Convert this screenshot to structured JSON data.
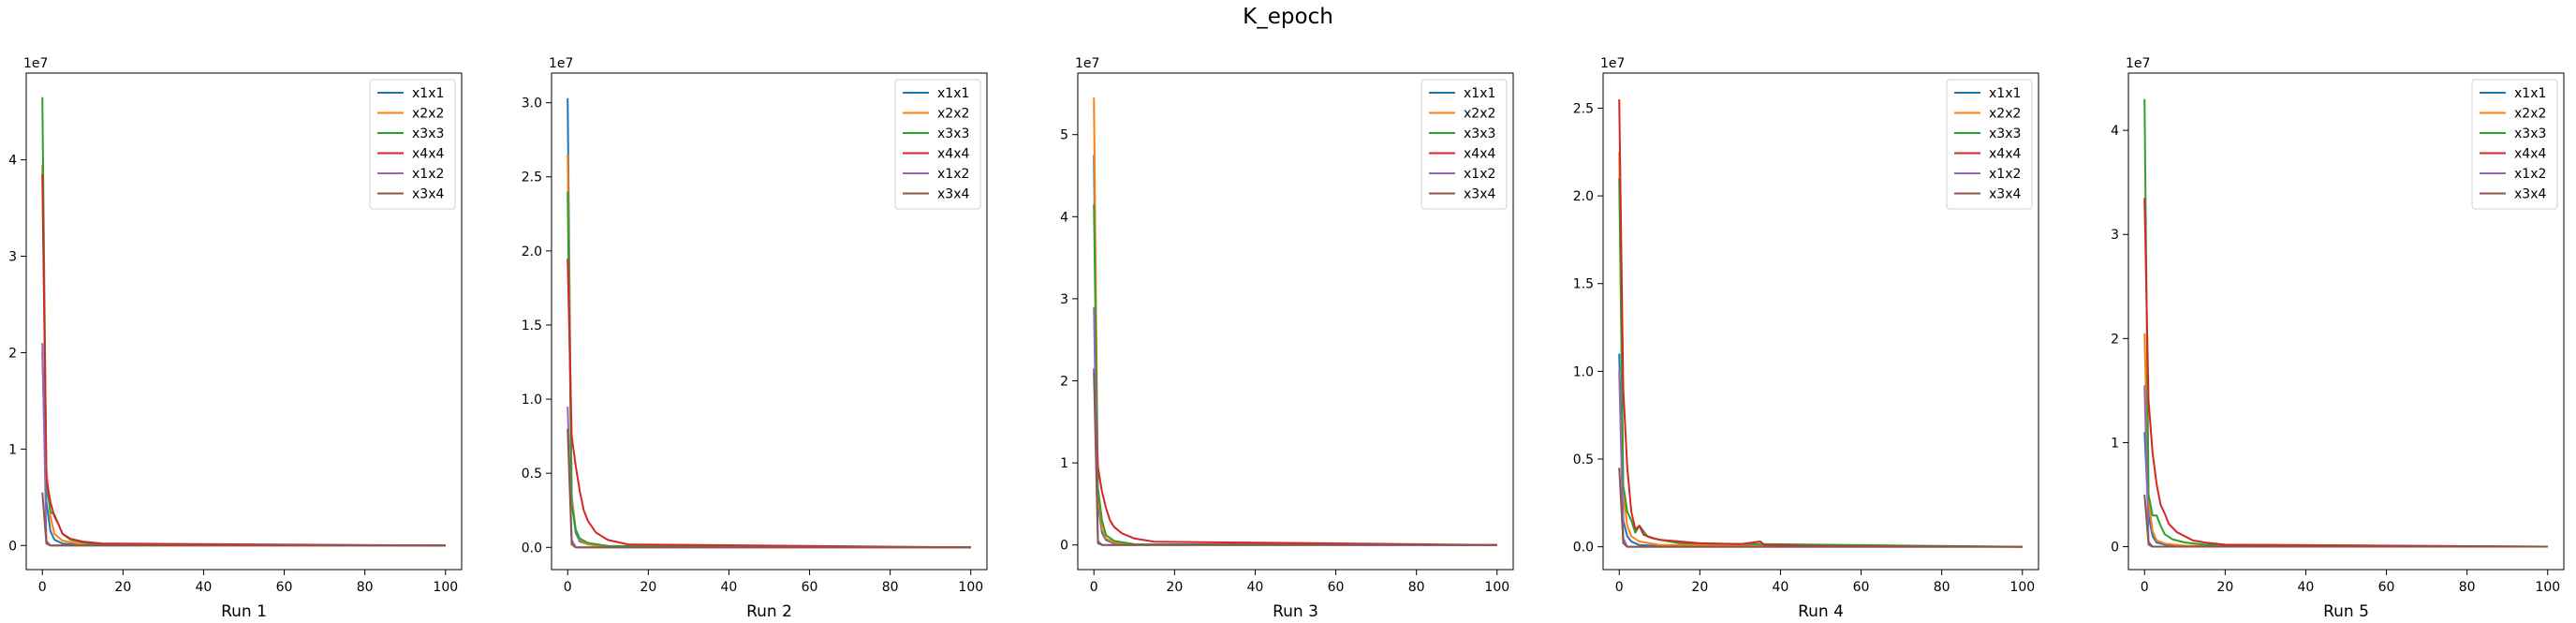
{
  "figure": {
    "title": "K_epoch"
  },
  "colors": {
    "x1x1": "#1f77b4",
    "x2x2": "#ff7f0e",
    "x3x3": "#2ca02c",
    "x4x4": "#d62728",
    "x1x2": "#9467bd",
    "x3x4": "#8c564b"
  },
  "chart_data": [
    {
      "type": "line",
      "title": "",
      "xlabel": "Run 1",
      "ylabel": "",
      "y_scale_label": "1e7",
      "xlim": [
        -4,
        104
      ],
      "ylim": [
        -0.25,
        4.9
      ],
      "xticks": [
        0,
        20,
        40,
        60,
        80,
        100
      ],
      "xtick_labels": [
        "0",
        "20",
        "40",
        "60",
        "80",
        "100"
      ],
      "yticks": [
        0,
        1,
        2,
        3,
        4
      ],
      "ytick_labels": [
        "0",
        "1",
        "2",
        "3",
        "4"
      ],
      "grid": false,
      "legend": "top-right",
      "series": [
        {
          "name": "x1x1",
          "x": [
            0,
            1,
            2,
            3,
            5,
            10,
            100
          ],
          "y": [
            2.0,
            0.45,
            0.15,
            0.06,
            0.02,
            0.005,
            0.0
          ]
        },
        {
          "name": "x2x2",
          "x": [
            0,
            1,
            2,
            3,
            5,
            10,
            100
          ],
          "y": [
            3.95,
            0.8,
            0.3,
            0.12,
            0.05,
            0.01,
            0.0
          ]
        },
        {
          "name": "x3x3",
          "x": [
            0,
            1,
            2,
            3,
            4,
            5,
            7,
            10,
            15,
            100
          ],
          "y": [
            4.65,
            0.65,
            0.35,
            0.32,
            0.22,
            0.12,
            0.06,
            0.03,
            0.01,
            0.0
          ]
        },
        {
          "name": "x4x4",
          "x": [
            0,
            1,
            2,
            3,
            4,
            5,
            7,
            10,
            15,
            100
          ],
          "y": [
            3.85,
            0.7,
            0.45,
            0.3,
            0.22,
            0.12,
            0.07,
            0.04,
            0.02,
            0.0
          ]
        },
        {
          "name": "x1x2",
          "x": [
            0,
            1,
            2,
            100
          ],
          "y": [
            2.1,
            0.05,
            0.0,
            0.0
          ]
        },
        {
          "name": "x3x4",
          "x": [
            0,
            1,
            2,
            100
          ],
          "y": [
            0.55,
            0.02,
            0.0,
            0.0
          ]
        }
      ]
    },
    {
      "type": "line",
      "title": "",
      "xlabel": "Run 2",
      "ylabel": "",
      "y_scale_label": "1e7",
      "xlim": [
        -4,
        104
      ],
      "ylim": [
        -0.15,
        3.2
      ],
      "xticks": [
        0,
        20,
        40,
        60,
        80,
        100
      ],
      "xtick_labels": [
        "0",
        "20",
        "40",
        "60",
        "80",
        "100"
      ],
      "yticks": [
        0.0,
        0.5,
        1.0,
        1.5,
        2.0,
        2.5,
        3.0
      ],
      "ytick_labels": [
        "0.0",
        "0.5",
        "1.0",
        "1.5",
        "2.0",
        "2.5",
        "3.0"
      ],
      "grid": false,
      "legend": "top-right",
      "series": [
        {
          "name": "x1x1",
          "x": [
            0,
            1,
            2,
            3,
            5,
            10,
            100
          ],
          "y": [
            3.03,
            0.3,
            0.1,
            0.04,
            0.02,
            0.005,
            0.0
          ]
        },
        {
          "name": "x2x2",
          "x": [
            0,
            1,
            2,
            3,
            5,
            10,
            100
          ],
          "y": [
            2.65,
            0.35,
            0.12,
            0.05,
            0.02,
            0.005,
            0.0
          ]
        },
        {
          "name": "x3x3",
          "x": [
            0,
            1,
            2,
            3,
            5,
            10,
            100
          ],
          "y": [
            2.4,
            0.3,
            0.12,
            0.06,
            0.03,
            0.01,
            0.0
          ]
        },
        {
          "name": "x4x4",
          "x": [
            0,
            1,
            2,
            3,
            4,
            5,
            7,
            10,
            15,
            100
          ],
          "y": [
            1.95,
            0.75,
            0.55,
            0.38,
            0.25,
            0.18,
            0.1,
            0.05,
            0.02,
            0.0
          ]
        },
        {
          "name": "x1x2",
          "x": [
            0,
            1,
            2,
            100
          ],
          "y": [
            0.95,
            0.05,
            0.0,
            0.0
          ]
        },
        {
          "name": "x3x4",
          "x": [
            0,
            1,
            2,
            100
          ],
          "y": [
            0.8,
            0.02,
            0.0,
            0.0
          ]
        }
      ]
    },
    {
      "type": "line",
      "title": "",
      "xlabel": "Run 3",
      "ylabel": "",
      "y_scale_label": "1e7",
      "xlim": [
        -4,
        104
      ],
      "ylim": [
        -0.3,
        5.75
      ],
      "xticks": [
        0,
        20,
        40,
        60,
        80,
        100
      ],
      "xtick_labels": [
        "0",
        "20",
        "40",
        "60",
        "80",
        "100"
      ],
      "yticks": [
        0,
        1,
        2,
        3,
        4,
        5
      ],
      "ytick_labels": [
        "0",
        "1",
        "2",
        "3",
        "4",
        "5"
      ],
      "grid": false,
      "legend": "top-right",
      "series": [
        {
          "name": "x1x1",
          "x": [
            0,
            1,
            2,
            3,
            5,
            10,
            100
          ],
          "y": [
            4.75,
            0.5,
            0.15,
            0.06,
            0.02,
            0.005,
            0.0
          ]
        },
        {
          "name": "x2x2",
          "x": [
            0,
            1,
            2,
            3,
            5,
            10,
            100
          ],
          "y": [
            5.45,
            0.6,
            0.2,
            0.08,
            0.03,
            0.01,
            0.0
          ]
        },
        {
          "name": "x3x3",
          "x": [
            0,
            1,
            2,
            3,
            5,
            10,
            100
          ],
          "y": [
            4.15,
            0.7,
            0.3,
            0.12,
            0.05,
            0.01,
            0.0
          ]
        },
        {
          "name": "x4x4",
          "x": [
            0,
            1,
            2,
            3,
            4,
            5,
            7,
            10,
            15,
            100
          ],
          "y": [
            2.15,
            0.95,
            0.65,
            0.45,
            0.3,
            0.22,
            0.14,
            0.08,
            0.04,
            0.0
          ]
        },
        {
          "name": "x1x2",
          "x": [
            0,
            1,
            2,
            100
          ],
          "y": [
            2.9,
            0.05,
            0.0,
            0.0
          ]
        },
        {
          "name": "x3x4",
          "x": [
            0,
            1,
            2,
            100
          ],
          "y": [
            2.1,
            0.02,
            0.0,
            0.0
          ]
        }
      ]
    },
    {
      "type": "line",
      "title": "",
      "xlabel": "Run 4",
      "ylabel": "",
      "y_scale_label": "1e7",
      "xlim": [
        -4,
        104
      ],
      "ylim": [
        -0.13,
        2.7
      ],
      "xticks": [
        0,
        20,
        40,
        60,
        80,
        100
      ],
      "xtick_labels": [
        "0",
        "20",
        "40",
        "60",
        "80",
        "100"
      ],
      "yticks": [
        0.0,
        0.5,
        1.0,
        1.5,
        2.0,
        2.5
      ],
      "ytick_labels": [
        "0.0",
        "0.5",
        "1.0",
        "1.5",
        "2.0",
        "2.5"
      ],
      "grid": false,
      "legend": "top-right",
      "series": [
        {
          "name": "x1x1",
          "x": [
            0,
            1,
            2,
            3,
            5,
            10,
            100
          ],
          "y": [
            1.1,
            0.15,
            0.06,
            0.03,
            0.01,
            0.005,
            0.0
          ]
        },
        {
          "name": "x2x2",
          "x": [
            0,
            1,
            2,
            3,
            5,
            10,
            100
          ],
          "y": [
            2.25,
            0.3,
            0.12,
            0.06,
            0.03,
            0.01,
            0.0
          ]
        },
        {
          "name": "x3x3",
          "x": [
            0,
            1,
            2,
            3,
            4,
            5,
            7,
            10,
            15,
            100
          ],
          "y": [
            2.1,
            0.35,
            0.2,
            0.15,
            0.08,
            0.12,
            0.06,
            0.04,
            0.02,
            0.0
          ]
        },
        {
          "name": "x4x4",
          "x": [
            0,
            1,
            2,
            3,
            4,
            5,
            6,
            8,
            10,
            15,
            20,
            30,
            35,
            36,
            40,
            50,
            100
          ],
          "y": [
            2.55,
            0.9,
            0.45,
            0.2,
            0.1,
            0.12,
            0.07,
            0.05,
            0.04,
            0.03,
            0.02,
            0.015,
            0.03,
            0.01,
            0.01,
            0.005,
            0.0
          ]
        },
        {
          "name": "x1x2",
          "x": [
            0,
            1,
            2,
            100
          ],
          "y": [
            1.0,
            0.05,
            0.0,
            0.0
          ]
        },
        {
          "name": "x3x4",
          "x": [
            0,
            1,
            2,
            100
          ],
          "y": [
            0.45,
            0.02,
            0.0,
            0.0
          ]
        }
      ]
    },
    {
      "type": "line",
      "title": "",
      "xlabel": "Run 5",
      "ylabel": "",
      "y_scale_label": "1e7",
      "xlim": [
        -4,
        104
      ],
      "ylim": [
        -0.22,
        4.55
      ],
      "xticks": [
        0,
        20,
        40,
        60,
        80,
        100
      ],
      "xtick_labels": [
        "0",
        "20",
        "40",
        "60",
        "80",
        "100"
      ],
      "yticks": [
        0,
        1,
        2,
        3,
        4
      ],
      "ytick_labels": [
        "0",
        "1",
        "2",
        "3",
        "4"
      ],
      "grid": false,
      "legend": "top-right",
      "series": [
        {
          "name": "x1x1",
          "x": [
            0,
            1,
            2,
            3,
            5,
            10,
            100
          ],
          "y": [
            1.1,
            0.3,
            0.1,
            0.04,
            0.02,
            0.005,
            0.0
          ]
        },
        {
          "name": "x2x2",
          "x": [
            0,
            1,
            2,
            3,
            5,
            10,
            100
          ],
          "y": [
            2.05,
            0.45,
            0.15,
            0.06,
            0.03,
            0.01,
            0.0
          ]
        },
        {
          "name": "x3x3",
          "x": [
            0,
            1,
            2,
            3,
            4,
            5,
            7,
            10,
            15,
            100
          ],
          "y": [
            4.3,
            0.5,
            0.3,
            0.3,
            0.2,
            0.12,
            0.07,
            0.04,
            0.02,
            0.0
          ]
        },
        {
          "name": "x4x4",
          "x": [
            0,
            1,
            2,
            3,
            4,
            5,
            6,
            8,
            10,
            12,
            15,
            20,
            100
          ],
          "y": [
            3.35,
            1.4,
            0.9,
            0.6,
            0.4,
            0.32,
            0.22,
            0.14,
            0.1,
            0.06,
            0.04,
            0.02,
            0.0
          ]
        },
        {
          "name": "x1x2",
          "x": [
            0,
            1,
            2,
            100
          ],
          "y": [
            1.55,
            0.05,
            0.0,
            0.0
          ]
        },
        {
          "name": "x3x4",
          "x": [
            0,
            1,
            2,
            100
          ],
          "y": [
            0.5,
            0.02,
            0.0,
            0.0
          ]
        }
      ]
    }
  ]
}
